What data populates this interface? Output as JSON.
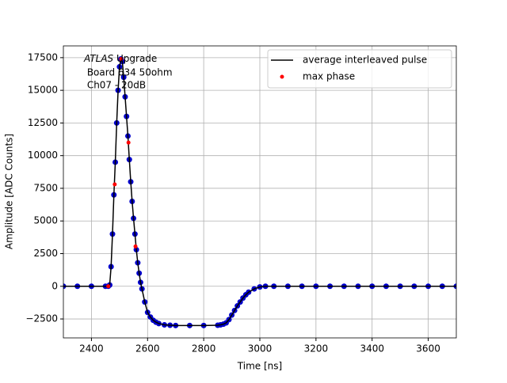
{
  "chart_data": {
    "type": "line",
    "xlabel": "Time [ns]",
    "ylabel": "Amplitude [ADC Counts]",
    "annotation": {
      "italic": "ATLAS",
      "lines": [
        " Upgrade",
        " Board 634 50ohm",
        " Ch07 - 20dB"
      ]
    },
    "x": [
      2300,
      2350,
      2400,
      2450,
      2460,
      2465,
      2470,
      2475,
      2480,
      2485,
      2490,
      2495,
      2500,
      2505,
      2510,
      2515,
      2520,
      2525,
      2530,
      2535,
      2540,
      2545,
      2550,
      2555,
      2560,
      2565,
      2570,
      2575,
      2580,
      2590,
      2600,
      2610,
      2620,
      2630,
      2640,
      2660,
      2680,
      2700,
      2750,
      2800,
      2850,
      2860,
      2870,
      2880,
      2890,
      2900,
      2910,
      2920,
      2930,
      2940,
      2950,
      2960,
      2980,
      3000,
      3020,
      3050,
      3100,
      3150,
      3200,
      3250,
      3300,
      3350,
      3400,
      3450,
      3500,
      3550,
      3600,
      3650,
      3700
    ],
    "series": [
      {
        "name": "average interleaved pulse",
        "color": "#000000",
        "marker_color": "#0000cc",
        "values": [
          0,
          0,
          0,
          0,
          0,
          100,
          1500,
          4000,
          7000,
          9500,
          12500,
          15000,
          16800,
          17400,
          17200,
          16000,
          14500,
          13000,
          11500,
          9700,
          8000,
          6500,
          5200,
          4000,
          2800,
          1800,
          1000,
          300,
          -200,
          -1200,
          -2000,
          -2350,
          -2600,
          -2750,
          -2850,
          -2950,
          -2980,
          -3000,
          -3000,
          -3000,
          -2980,
          -2950,
          -2900,
          -2800,
          -2550,
          -2200,
          -1850,
          -1500,
          -1200,
          -900,
          -650,
          -450,
          -200,
          -50,
          0,
          0,
          0,
          0,
          0,
          0,
          0,
          0,
          0,
          0,
          0,
          0,
          0,
          0,
          0
        ]
      },
      {
        "name": "max phase",
        "color": "#ff0000",
        "x": [
          2460,
          2483,
          2506,
          2532,
          2557
        ],
        "values": [
          0,
          7800,
          17400,
          11000,
          3050
        ]
      }
    ],
    "xlim": [
      2300,
      3700
    ],
    "xticks": [
      2400,
      2600,
      2800,
      3000,
      3200,
      3400,
      3600
    ],
    "ylim": [
      -3950,
      18400
    ],
    "yticks": [
      {
        "value": -2500,
        "label": "−2500"
      },
      0,
      2500,
      5000,
      7500,
      10000,
      12500,
      15000,
      17500
    ],
    "grid": true,
    "legend": "upper right"
  }
}
